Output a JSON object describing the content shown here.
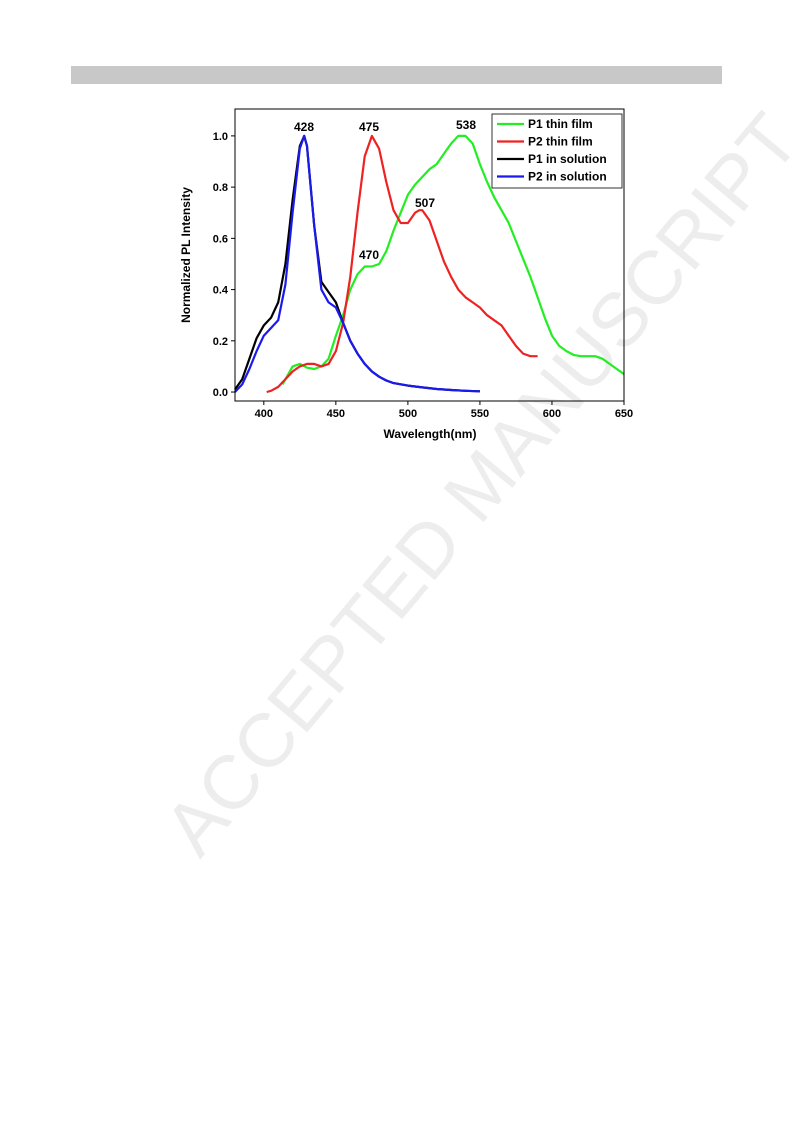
{
  "watermark": "ACCEPTED MANUSCRIPT",
  "chart_data": {
    "type": "line",
    "xlabel": "Wavelength(nm)",
    "ylabel": "Normalized PL Intensity",
    "xlim": [
      380,
      650
    ],
    "xticks": [
      400,
      450,
      500,
      550,
      600,
      650
    ],
    "ylim": [
      -0.035,
      1.105
    ],
    "yticks": [
      {
        "value": 0,
        "label": "0.0"
      },
      {
        "value": 0.2,
        "label": "0.2"
      },
      {
        "value": 0.4,
        "label": "0.4"
      },
      {
        "value": 0.6,
        "label": "0.6"
      },
      {
        "value": 0.8,
        "label": "0.8"
      },
      {
        "value": 1,
        "label": "1.0"
      }
    ],
    "legend": "upper right",
    "annotations": [
      "428",
      "475",
      "538",
      "507",
      "470"
    ],
    "series": [
      {
        "name": "P1 thin film",
        "color": "#22ee22",
        "x": [
          413,
          420,
          425,
          430,
          435,
          440,
          445,
          450,
          455,
          460,
          465,
          470,
          475,
          480,
          485,
          490,
          495,
          500,
          505,
          510,
          515,
          520,
          525,
          530,
          535,
          540,
          545,
          550,
          555,
          560,
          565,
          570,
          575,
          580,
          585,
          590,
          595,
          600,
          605,
          610,
          615,
          620,
          625,
          630,
          635,
          640,
          645,
          650
        ],
        "values": [
          0.03,
          0.1,
          0.11,
          0.095,
          0.09,
          0.1,
          0.13,
          0.22,
          0.3,
          0.4,
          0.46,
          0.49,
          0.49,
          0.5,
          0.55,
          0.63,
          0.7,
          0.77,
          0.81,
          0.84,
          0.87,
          0.89,
          0.93,
          0.97,
          1.0,
          1.0,
          0.97,
          0.89,
          0.82,
          0.76,
          0.71,
          0.66,
          0.59,
          0.52,
          0.45,
          0.37,
          0.29,
          0.22,
          0.18,
          0.16,
          0.145,
          0.14,
          0.14,
          0.14,
          0.13,
          0.11,
          0.09,
          0.07
        ]
      },
      {
        "name": "P2 thin film",
        "color": "#ee2222",
        "x": [
          402,
          405,
          410,
          415,
          420,
          425,
          430,
          435,
          440,
          445,
          450,
          455,
          460,
          465,
          470,
          475,
          480,
          485,
          490,
          495,
          500,
          505,
          508,
          510,
          515,
          520,
          525,
          530,
          535,
          540,
          545,
          550,
          555,
          560,
          565,
          570,
          575,
          580,
          585,
          590
        ],
        "values": [
          0,
          0.005,
          0.02,
          0.05,
          0.08,
          0.1,
          0.11,
          0.11,
          0.1,
          0.11,
          0.16,
          0.27,
          0.45,
          0.7,
          0.92,
          1.0,
          0.95,
          0.82,
          0.71,
          0.66,
          0.66,
          0.7,
          0.71,
          0.71,
          0.67,
          0.59,
          0.51,
          0.45,
          0.4,
          0.37,
          0.35,
          0.33,
          0.3,
          0.28,
          0.26,
          0.22,
          0.18,
          0.15,
          0.14,
          0.14
        ]
      },
      {
        "name": "P1 in solution",
        "color": "#000000",
        "x": [
          380,
          385,
          390,
          395,
          400,
          405,
          410,
          415,
          420,
          425,
          428,
          430,
          435,
          440,
          445,
          450,
          455,
          460,
          465,
          470,
          475,
          480,
          485,
          490,
          500,
          510,
          520,
          530,
          540,
          550
        ],
        "values": [
          0.01,
          0.05,
          0.13,
          0.21,
          0.26,
          0.29,
          0.35,
          0.5,
          0.75,
          0.96,
          1.0,
          0.96,
          0.65,
          0.43,
          0.39,
          0.35,
          0.27,
          0.2,
          0.15,
          0.11,
          0.08,
          0.06,
          0.045,
          0.035,
          0.025,
          0.018,
          0.012,
          0.008,
          0.005,
          0.003
        ]
      },
      {
        "name": "P2 in solution",
        "color": "#1a1aee",
        "x": [
          380,
          385,
          390,
          395,
          400,
          405,
          410,
          415,
          420,
          425,
          428,
          430,
          435,
          440,
          445,
          450,
          455,
          460,
          465,
          470,
          475,
          480,
          485,
          490,
          500,
          510,
          520,
          530,
          540,
          550
        ],
        "values": [
          0,
          0.03,
          0.09,
          0.16,
          0.22,
          0.25,
          0.28,
          0.42,
          0.7,
          0.95,
          1.0,
          0.96,
          0.65,
          0.4,
          0.35,
          0.33,
          0.27,
          0.2,
          0.15,
          0.11,
          0.08,
          0.06,
          0.045,
          0.035,
          0.025,
          0.018,
          0.012,
          0.008,
          0.005,
          0.003
        ]
      }
    ]
  }
}
